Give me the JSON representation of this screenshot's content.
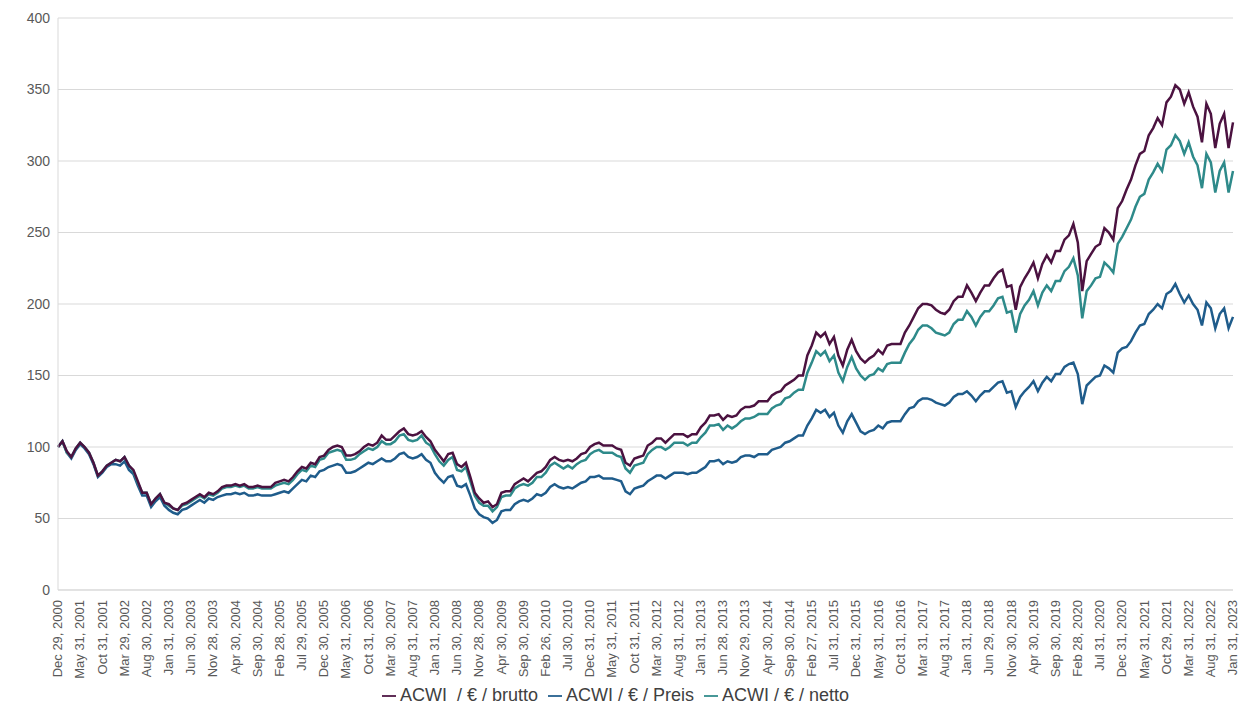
{
  "chart_data": {
    "type": "line",
    "categories": [
      "Dec 29, 2000",
      null,
      null,
      null,
      null,
      "May 31, 2001",
      null,
      null,
      null,
      null,
      "Oct 31, 2001",
      null,
      null,
      null,
      null,
      "Mar 29, 2002",
      null,
      null,
      null,
      null,
      "Aug 30, 2002",
      null,
      null,
      null,
      null,
      "Jan 31, 2003",
      null,
      null,
      null,
      null,
      "Jun 30, 2003",
      null,
      null,
      null,
      null,
      "Nov 28, 2003",
      null,
      null,
      null,
      null,
      "Apr 30, 2004",
      null,
      null,
      null,
      null,
      "Sep 30, 2004",
      null,
      null,
      null,
      null,
      "Feb 28, 2005",
      null,
      null,
      null,
      null,
      "Jul 29, 2005",
      null,
      null,
      null,
      null,
      "Dec 30, 2005",
      null,
      null,
      null,
      null,
      "May 31, 2006",
      null,
      null,
      null,
      null,
      "Oct 31, 2006",
      null,
      null,
      null,
      null,
      "Mar 30, 2007",
      null,
      null,
      null,
      null,
      "Aug 31, 2007",
      null,
      null,
      null,
      null,
      "Jan 31, 2008",
      null,
      null,
      null,
      null,
      "Jun 30, 2008",
      null,
      null,
      null,
      null,
      "Nov 28, 2008",
      null,
      null,
      null,
      null,
      "Apr 30, 2009",
      null,
      null,
      null,
      null,
      "Sep 30, 2009",
      null,
      null,
      null,
      null,
      "Feb 26, 2010",
      null,
      null,
      null,
      null,
      "Jul 30, 2010",
      null,
      null,
      null,
      null,
      "Dec 31, 2010",
      null,
      null,
      null,
      null,
      "May 31, 2011",
      null,
      null,
      null,
      null,
      "Oct 31, 2011",
      null,
      null,
      null,
      null,
      "Mar 30, 2012",
      null,
      null,
      null,
      null,
      "Aug 31, 2012",
      null,
      null,
      null,
      null,
      "Jan 31, 2013",
      null,
      null,
      null,
      null,
      "Jun 28, 2013",
      null,
      null,
      null,
      null,
      "Nov 29, 2013",
      null,
      null,
      null,
      null,
      "Apr 30, 2014",
      null,
      null,
      null,
      null,
      "Sep 30, 2014",
      null,
      null,
      null,
      null,
      "Feb 27, 2015",
      null,
      null,
      null,
      null,
      "Jul 31, 2015",
      null,
      null,
      null,
      null,
      "Dec 31, 2015",
      null,
      null,
      null,
      null,
      "May 31, 2016",
      null,
      null,
      null,
      null,
      "Oct 31, 2016",
      null,
      null,
      null,
      null,
      "Mar 31, 2017",
      null,
      null,
      null,
      null,
      "Aug 31, 2017",
      null,
      null,
      null,
      null,
      "Jan 31, 2018",
      null,
      null,
      null,
      null,
      "Jun 29, 2018",
      null,
      null,
      null,
      null,
      "Nov 30, 2018",
      null,
      null,
      null,
      null,
      "Apr 30, 2019",
      null,
      null,
      null,
      null,
      "Sep 30, 2019",
      null,
      null,
      null,
      null,
      "Feb 28, 2020",
      null,
      null,
      null,
      null,
      "Jul 31, 2020",
      null,
      null,
      null,
      null,
      "Dec 31, 2020",
      null,
      null,
      null,
      null,
      "May 31, 2021",
      null,
      null,
      null,
      null,
      "Oct 29, 2021",
      null,
      null,
      null,
      null,
      "Mar 31, 2022",
      null,
      null,
      null,
      null,
      "Aug 31, 2022",
      null,
      null,
      null,
      null,
      "Jan 31, 2023"
    ],
    "series": [
      {
        "name": "ACWI / € / Preis",
        "color": "#1f5c8b",
        "values": [
          100,
          104,
          96,
          92,
          98,
          102,
          99,
          95,
          88,
          79,
          82,
          86,
          88,
          88,
          87,
          90,
          84,
          81,
          73,
          66,
          66,
          58,
          62,
          65,
          59,
          56,
          54,
          53,
          56,
          57,
          59,
          61,
          63,
          61,
          64,
          63,
          65,
          66,
          67,
          67,
          68,
          67,
          68,
          66,
          66,
          67,
          66,
          66,
          66,
          67,
          68,
          69,
          68,
          71,
          74,
          77,
          76,
          80,
          79,
          83,
          84,
          86,
          87,
          88,
          87,
          82,
          82,
          83,
          85,
          87,
          89,
          88,
          90,
          92,
          90,
          90,
          92,
          95,
          96,
          93,
          92,
          93,
          95,
          91,
          89,
          82,
          78,
          75,
          79,
          80,
          73,
          72,
          74,
          66,
          57,
          53,
          51,
          50,
          47,
          49,
          55,
          56,
          56,
          60,
          62,
          63,
          62,
          64,
          67,
          66,
          68,
          72,
          74,
          72,
          71,
          72,
          71,
          73,
          75,
          76,
          79,
          79,
          80,
          78,
          78,
          78,
          77,
          76,
          69,
          67,
          71,
          72,
          73,
          76,
          78,
          80,
          80,
          78,
          80,
          82,
          82,
          82,
          81,
          82,
          82,
          84,
          86,
          90,
          90,
          91,
          88,
          90,
          89,
          90,
          93,
          94,
          94,
          93,
          95,
          95,
          95,
          98,
          99,
          100,
          103,
          104,
          106,
          108,
          108,
          115,
          120,
          126,
          124,
          126,
          121,
          124,
          115,
          110,
          118,
          123,
          117,
          111,
          109,
          111,
          112,
          115,
          113,
          117,
          118,
          118,
          118,
          123,
          127,
          128,
          132,
          134,
          134,
          133,
          131,
          130,
          129,
          131,
          135,
          137,
          137,
          139,
          136,
          132,
          136,
          139,
          139,
          142,
          145,
          146,
          138,
          139,
          128,
          135,
          139,
          142,
          146,
          139,
          145,
          149,
          146,
          151,
          151,
          156,
          158,
          159,
          151,
          130,
          143,
          146,
          149,
          150,
          157,
          155,
          152,
          166,
          169,
          170,
          174,
          180,
          185,
          186,
          193,
          196,
          200,
          197,
          207,
          209,
          214,
          207,
          201,
          206,
          200,
          196,
          185,
          201,
          197,
          183,
          193,
          197,
          183,
          191
        ]
      },
      {
        "name": "ACWI / € / netto",
        "color": "#2e8a8a",
        "values": [
          100,
          104,
          96,
          93,
          99,
          103,
          100,
          96,
          89,
          80,
          83,
          87,
          89,
          91,
          90,
          93,
          87,
          83,
          75,
          68,
          68,
          60,
          64,
          67,
          61,
          59,
          57,
          56,
          59,
          60,
          62,
          64,
          66,
          64,
          67,
          66,
          68,
          71,
          72,
          72,
          73,
          72,
          73,
          71,
          71,
          72,
          71,
          71,
          71,
          73,
          74,
          75,
          74,
          77,
          81,
          84,
          83,
          87,
          86,
          91,
          92,
          96,
          97,
          98,
          97,
          91,
          91,
          92,
          95,
          97,
          99,
          98,
          100,
          104,
          102,
          102,
          104,
          108,
          109,
          105,
          104,
          105,
          108,
          103,
          101,
          95,
          90,
          87,
          91,
          93,
          84,
          83,
          86,
          76,
          66,
          61,
          59,
          59,
          55,
          58,
          65,
          66,
          66,
          71,
          73,
          74,
          73,
          75,
          79,
          79,
          82,
          87,
          89,
          87,
          85,
          87,
          85,
          88,
          90,
          91,
          95,
          97,
          98,
          96,
          96,
          96,
          94,
          93,
          85,
          82,
          87,
          88,
          89,
          95,
          98,
          100,
          100,
          98,
          100,
          103,
          103,
          103,
          101,
          103,
          103,
          107,
          110,
          115,
          115,
          116,
          112,
          115,
          113,
          115,
          118,
          120,
          120,
          121,
          123,
          123,
          123,
          127,
          129,
          130,
          134,
          135,
          138,
          140,
          140,
          152,
          159,
          167,
          164,
          167,
          160,
          164,
          152,
          146,
          156,
          163,
          155,
          150,
          147,
          150,
          151,
          155,
          153,
          158,
          159,
          159,
          159,
          166,
          172,
          176,
          182,
          185,
          185,
          183,
          180,
          179,
          178,
          180,
          186,
          189,
          189,
          195,
          191,
          185,
          191,
          195,
          195,
          199,
          204,
          205,
          194,
          195,
          180,
          193,
          199,
          203,
          209,
          199,
          208,
          213,
          209,
          216,
          216,
          223,
          226,
          232,
          220,
          190,
          209,
          213,
          218,
          219,
          229,
          226,
          222,
          242,
          247,
          253,
          259,
          268,
          275,
          277,
          287,
          292,
          298,
          293,
          308,
          311,
          318,
          314,
          305,
          313,
          303,
          297,
          281,
          305,
          299,
          278,
          293,
          299,
          278,
          293
        ]
      },
      {
        "name": "ACWI  / € / brutto",
        "color": "#4b1240",
        "values": [
          100,
          104,
          97,
          93,
          99,
          103,
          100,
          96,
          89,
          80,
          83,
          87,
          89,
          91,
          90,
          93,
          87,
          84,
          76,
          68,
          68,
          60,
          64,
          67,
          61,
          60,
          57,
          56,
          60,
          61,
          63,
          65,
          67,
          65,
          68,
          67,
          69,
          72,
          73,
          73,
          74,
          73,
          74,
          72,
          72,
          73,
          72,
          72,
          72,
          75,
          76,
          77,
          76,
          79,
          83,
          86,
          85,
          89,
          88,
          93,
          94,
          98,
          100,
          101,
          100,
          94,
          94,
          95,
          97,
          100,
          102,
          101,
          103,
          108,
          105,
          105,
          108,
          111,
          113,
          109,
          108,
          109,
          111,
          107,
          104,
          98,
          94,
          90,
          95,
          96,
          88,
          86,
          89,
          79,
          68,
          64,
          61,
          62,
          58,
          60,
          68,
          69,
          69,
          74,
          76,
          78,
          76,
          79,
          82,
          83,
          86,
          91,
          93,
          91,
          90,
          91,
          90,
          92,
          95,
          96,
          100,
          102,
          103,
          101,
          101,
          101,
          99,
          98,
          89,
          87,
          92,
          93,
          94,
          101,
          103,
          106,
          106,
          103,
          106,
          109,
          109,
          109,
          107,
          109,
          109,
          114,
          117,
          122,
          122,
          123,
          119,
          122,
          121,
          122,
          126,
          128,
          128,
          129,
          132,
          132,
          132,
          136,
          138,
          139,
          143,
          145,
          147,
          150,
          150,
          164,
          171,
          180,
          177,
          180,
          172,
          177,
          164,
          157,
          168,
          175,
          167,
          162,
          159,
          162,
          164,
          168,
          165,
          171,
          172,
          172,
          172,
          180,
          185,
          191,
          197,
          200,
          200,
          199,
          196,
          194,
          193,
          196,
          202,
          205,
          205,
          213,
          208,
          202,
          208,
          213,
          213,
          218,
          222,
          224,
          212,
          213,
          196,
          212,
          218,
          223,
          229,
          218,
          228,
          234,
          229,
          237,
          237,
          245,
          248,
          256,
          243,
          209,
          230,
          235,
          240,
          242,
          253,
          250,
          245,
          267,
          272,
          280,
          287,
          297,
          305,
          307,
          318,
          323,
          330,
          325,
          341,
          345,
          353,
          350,
          340,
          348,
          338,
          331,
          313,
          340,
          333,
          309,
          326,
          333,
          309,
          327
        ]
      }
    ],
    "ylim": [
      0,
      400
    ],
    "yticks": [
      0,
      50,
      100,
      150,
      200,
      250,
      300,
      350,
      400
    ],
    "grid": true,
    "legend": "bottom"
  }
}
